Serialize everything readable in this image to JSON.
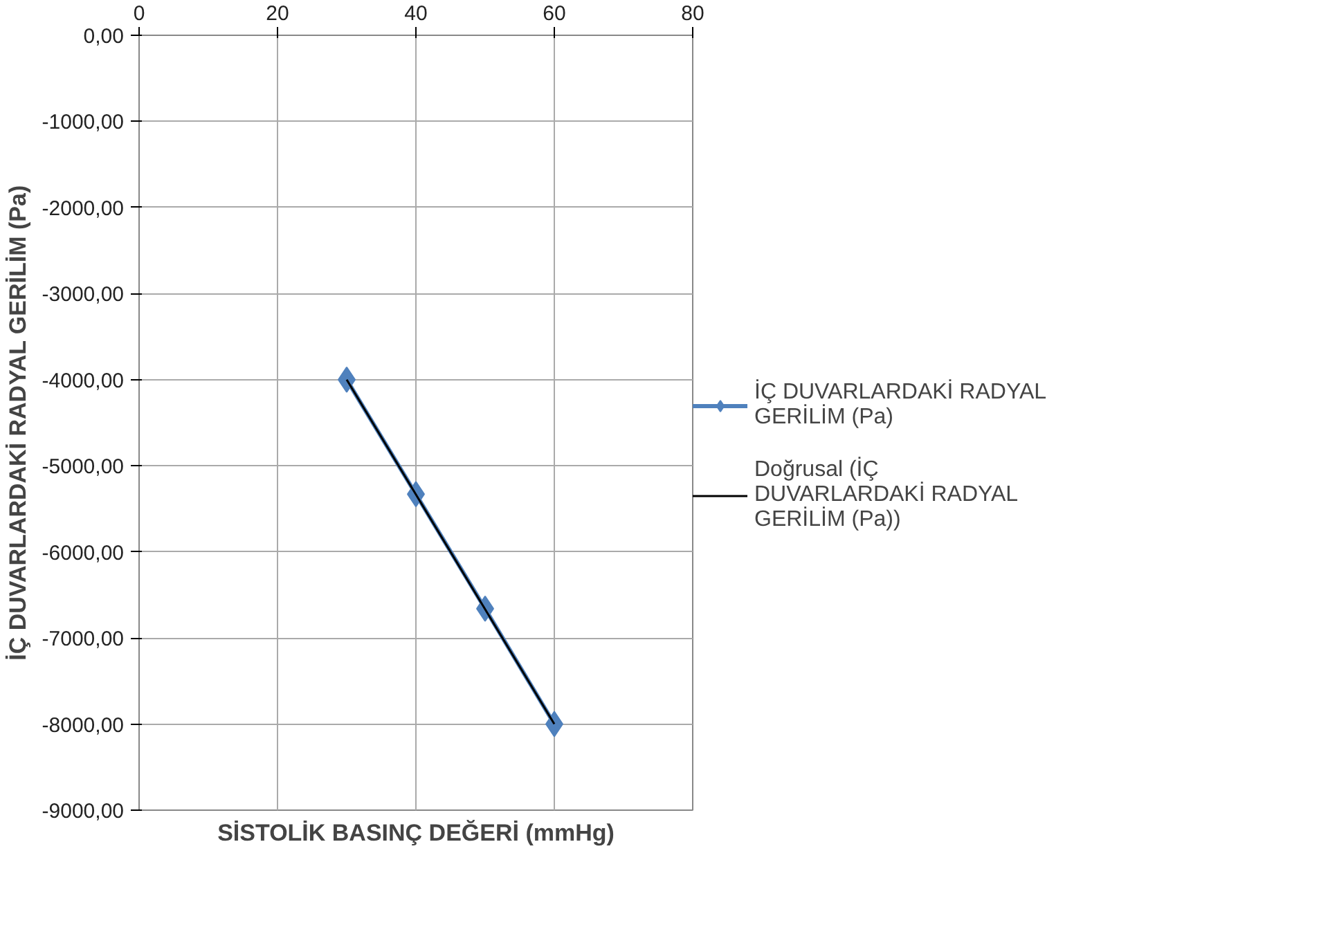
{
  "chart_data": {
    "type": "line",
    "xlabel": "SİSTOLİK BASINÇ DEĞERİ (mmHg)",
    "ylabel": "İÇ DUVARLARDAKİ RADYAL GERİLİM (Pa)",
    "xlim": [
      0,
      80
    ],
    "xticks": [
      0,
      20,
      40,
      60,
      80
    ],
    "ylim": [
      -9000,
      0
    ],
    "yticks": [
      {
        "value": 0,
        "label": "0,00"
      },
      {
        "value": -1000,
        "label": "-1000,00"
      },
      {
        "value": -2000,
        "label": "-2000,00"
      },
      {
        "value": -3000,
        "label": "-3000,00"
      },
      {
        "value": -4000,
        "label": "-4000,00"
      },
      {
        "value": -5000,
        "label": "-5000,00"
      },
      {
        "value": -6000,
        "label": "-6000,00"
      },
      {
        "value": -7000,
        "label": "-7000,00"
      },
      {
        "value": -8000,
        "label": "-8000,00"
      },
      {
        "value": -9000,
        "label": "-9000,00"
      }
    ],
    "grid": true,
    "legend": "right",
    "series": [
      {
        "name": "İÇ DUVARLARDAKİ RADYAL GERİLİM (Pa)",
        "color": "#4f81bd",
        "marker": "diamond",
        "x": [
          30,
          40,
          50,
          60
        ],
        "values": [
          -4000,
          -5330,
          -6660,
          -8000
        ]
      },
      {
        "name": "Doğrusal (İÇ DUVARLARDAKİ RADYAL GERİLİM (Pa))",
        "color": "#000000",
        "marker": "none",
        "x": [
          30,
          60
        ],
        "values": [
          -4000,
          -8000
        ]
      }
    ]
  }
}
